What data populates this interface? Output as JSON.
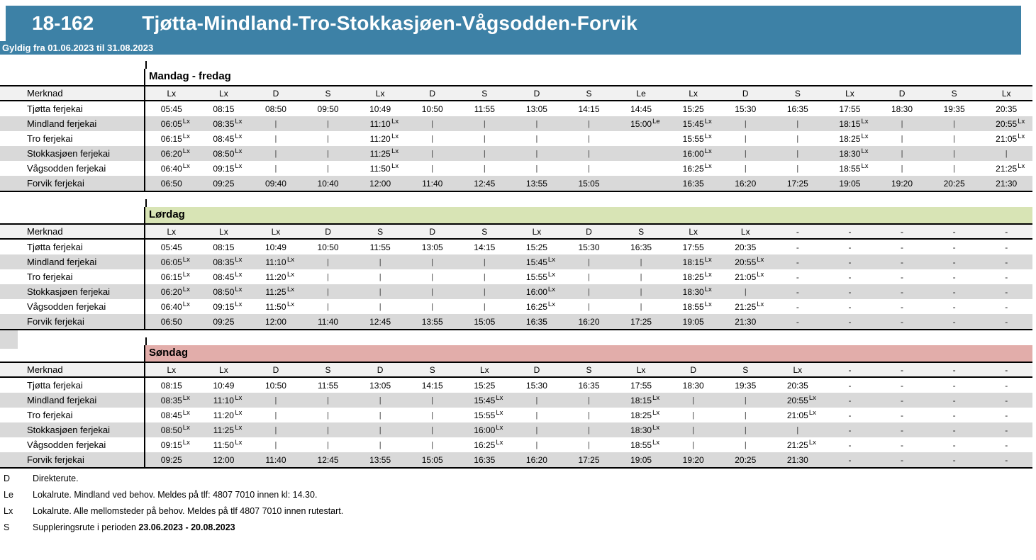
{
  "header": {
    "route_number": "18-162",
    "title": "Tjøtta-Mindland-Tro-Stokkasjøen-Vågsodden-Forvik",
    "validity": "Gyldig fra 01.06.2023 til 31.08.2023"
  },
  "colors": {
    "header_bar": "#3d81a6",
    "weekday_band": "#ffffff",
    "saturday_band": "#d8e4b5",
    "sunday_band": "#e2adaa",
    "merknad_row_bg": "#f1f1f1",
    "stripe_row_bg": "#d9d9d9"
  },
  "merknad_label": "Merknad",
  "stations": [
    "Tjøtta ferjekai",
    "Mindland ferjekai",
    "Tro ferjekai",
    "Stokkasjøen ferjekai",
    "Vågsodden ferjekai",
    "Forvik ferjekai"
  ],
  "tables": [
    {
      "day": "Mandag - fredag",
      "band_color": "#ffffff",
      "merknad": [
        "Lx",
        "Lx",
        "D",
        "S",
        "Lx",
        "D",
        "S",
        "D",
        "S",
        "Le",
        "Lx",
        "D",
        "S",
        "Lx",
        "D",
        "S",
        "Lx"
      ],
      "rows": [
        [
          "05:45",
          "08:15",
          "08:50",
          "09:50",
          "10:49",
          "10:50",
          "11:55",
          "13:05",
          "14:15",
          "14:45",
          "15:25",
          "15:30",
          "16:35",
          "17:55",
          "18:30",
          "19:35",
          "20:35"
        ],
        [
          "06:05^Lx",
          "08:35^Lx",
          "|",
          "|",
          "11:10^Lx",
          "|",
          "|",
          "|",
          "|",
          "15:00^Le",
          "15:45^Lx",
          "|",
          "|",
          "18:15^Lx",
          "|",
          "|",
          "20:55^Lx"
        ],
        [
          "06:15^Lx",
          "08:45^Lx",
          "|",
          "|",
          "11:20^Lx",
          "|",
          "|",
          "|",
          "|",
          "",
          "15:55^Lx",
          "|",
          "|",
          "18:25^Lx",
          "|",
          "|",
          "21:05^Lx"
        ],
        [
          "06:20^Lx",
          "08:50^Lx",
          "|",
          "|",
          "11:25^Lx",
          "|",
          "|",
          "|",
          "|",
          "",
          "16:00^Lx",
          "|",
          "|",
          "18:30^Lx",
          "|",
          "|",
          "|"
        ],
        [
          "06:40^Lx",
          "09:15^Lx",
          "|",
          "|",
          "11:50^Lx",
          "|",
          "|",
          "|",
          "|",
          "",
          "16:25^Lx",
          "|",
          "|",
          "18:55^Lx",
          "|",
          "|",
          "21:25^Lx"
        ],
        [
          "06:50",
          "09:25",
          "09:40",
          "10:40",
          "12:00",
          "11:40",
          "12:45",
          "13:55",
          "15:05",
          "",
          "16:35",
          "16:20",
          "17:25",
          "19:05",
          "19:20",
          "20:25",
          "21:30"
        ]
      ]
    },
    {
      "day": "Lørdag",
      "band_color": "#d8e4b5",
      "merknad": [
        "Lx",
        "Lx",
        "Lx",
        "D",
        "S",
        "D",
        "S",
        "Lx",
        "D",
        "S",
        "Lx",
        "Lx",
        "-",
        "-",
        "-",
        "-",
        "-"
      ],
      "rows": [
        [
          "05:45",
          "08:15",
          "10:49",
          "10:50",
          "11:55",
          "13:05",
          "14:15",
          "15:25",
          "15:30",
          "16:35",
          "17:55",
          "20:35",
          "-",
          "-",
          "-",
          "-",
          "-"
        ],
        [
          "06:05^Lx",
          "08:35^Lx",
          "11:10^Lx",
          "|",
          "|",
          "|",
          "|",
          "15:45^Lx",
          "|",
          "|",
          "18:15^Lx",
          "20:55^Lx",
          "-",
          "-",
          "-",
          "-",
          "-"
        ],
        [
          "06:15^Lx",
          "08:45^Lx",
          "11:20^Lx",
          "|",
          "|",
          "|",
          "|",
          "15:55^Lx",
          "|",
          "|",
          "18:25^Lx",
          "21:05^Lx",
          "-",
          "-",
          "-",
          "-",
          "-"
        ],
        [
          "06:20^Lx",
          "08:50^Lx",
          "11:25^Lx",
          "|",
          "|",
          "|",
          "|",
          "16:00^Lx",
          "|",
          "|",
          "18:30^Lx",
          "|",
          "-",
          "-",
          "-",
          "-",
          "-"
        ],
        [
          "06:40^Lx",
          "09:15^Lx",
          "11:50^Lx",
          "|",
          "|",
          "|",
          "|",
          "16:25^Lx",
          "|",
          "|",
          "18:55^Lx",
          "21:25^Lx",
          "-",
          "-",
          "-",
          "-",
          "-"
        ],
        [
          "06:50",
          "09:25",
          "12:00",
          "11:40",
          "12:45",
          "13:55",
          "15:05",
          "16:35",
          "16:20",
          "17:25",
          "19:05",
          "21:30",
          "-",
          "-",
          "-",
          "-",
          "-"
        ]
      ]
    },
    {
      "day": "Søndag",
      "band_color": "#e2adaa",
      "merknad": [
        "Lx",
        "Lx",
        "D",
        "S",
        "D",
        "S",
        "Lx",
        "D",
        "S",
        "Lx",
        "D",
        "S",
        "Lx",
        "-",
        "-",
        "-",
        "-"
      ],
      "rows": [
        [
          "08:15",
          "10:49",
          "10:50",
          "11:55",
          "13:05",
          "14:15",
          "15:25",
          "15:30",
          "16:35",
          "17:55",
          "18:30",
          "19:35",
          "20:35",
          "-",
          "-",
          "-",
          "-"
        ],
        [
          "08:35^Lx",
          "11:10^Lx",
          "|",
          "|",
          "|",
          "|",
          "15:45^Lx",
          "|",
          "|",
          "18:15^Lx",
          "|",
          "|",
          "20:55^Lx",
          "-",
          "-",
          "-",
          "-"
        ],
        [
          "08:45^Lx",
          "11:20^Lx",
          "|",
          "|",
          "|",
          "|",
          "15:55^Lx",
          "|",
          "|",
          "18:25^Lx",
          "|",
          "|",
          "21:05^Lx",
          "-",
          "-",
          "-",
          "-"
        ],
        [
          "08:50^Lx",
          "11:25^Lx",
          "|",
          "|",
          "|",
          "|",
          "16:00^Lx",
          "|",
          "|",
          "18:30^Lx",
          "|",
          "|",
          "|",
          "-",
          "-",
          "-",
          "-"
        ],
        [
          "09:15^Lx",
          "11:50^Lx",
          "|",
          "|",
          "|",
          "|",
          "16:25^Lx",
          "|",
          "|",
          "18:55^Lx",
          "|",
          "|",
          "21:25^Lx",
          "-",
          "-",
          "-",
          "-"
        ],
        [
          "09:25",
          "12:00",
          "11:40",
          "12:45",
          "13:55",
          "15:05",
          "16:35",
          "16:20",
          "17:25",
          "19:05",
          "19:20",
          "20:25",
          "21:30",
          "-",
          "-",
          "-",
          "-"
        ]
      ]
    }
  ],
  "footnotes": [
    {
      "code": "D",
      "text": "Direkterute.",
      "bold": ""
    },
    {
      "code": "Le",
      "text": "Lokalrute. Mindland ved behov. Meldes på tlf: 4807 7010 innen kl: 14.30.",
      "bold": ""
    },
    {
      "code": "Lx",
      "text": "Lokalrute. Alle mellomsteder på behov. Meldes på tlf 4807 7010 innen rutestart.",
      "bold": ""
    },
    {
      "code": "S",
      "text": "Suppleringsrute i perioden ",
      "bold": "23.06.2023 - 20.08.2023"
    }
  ]
}
